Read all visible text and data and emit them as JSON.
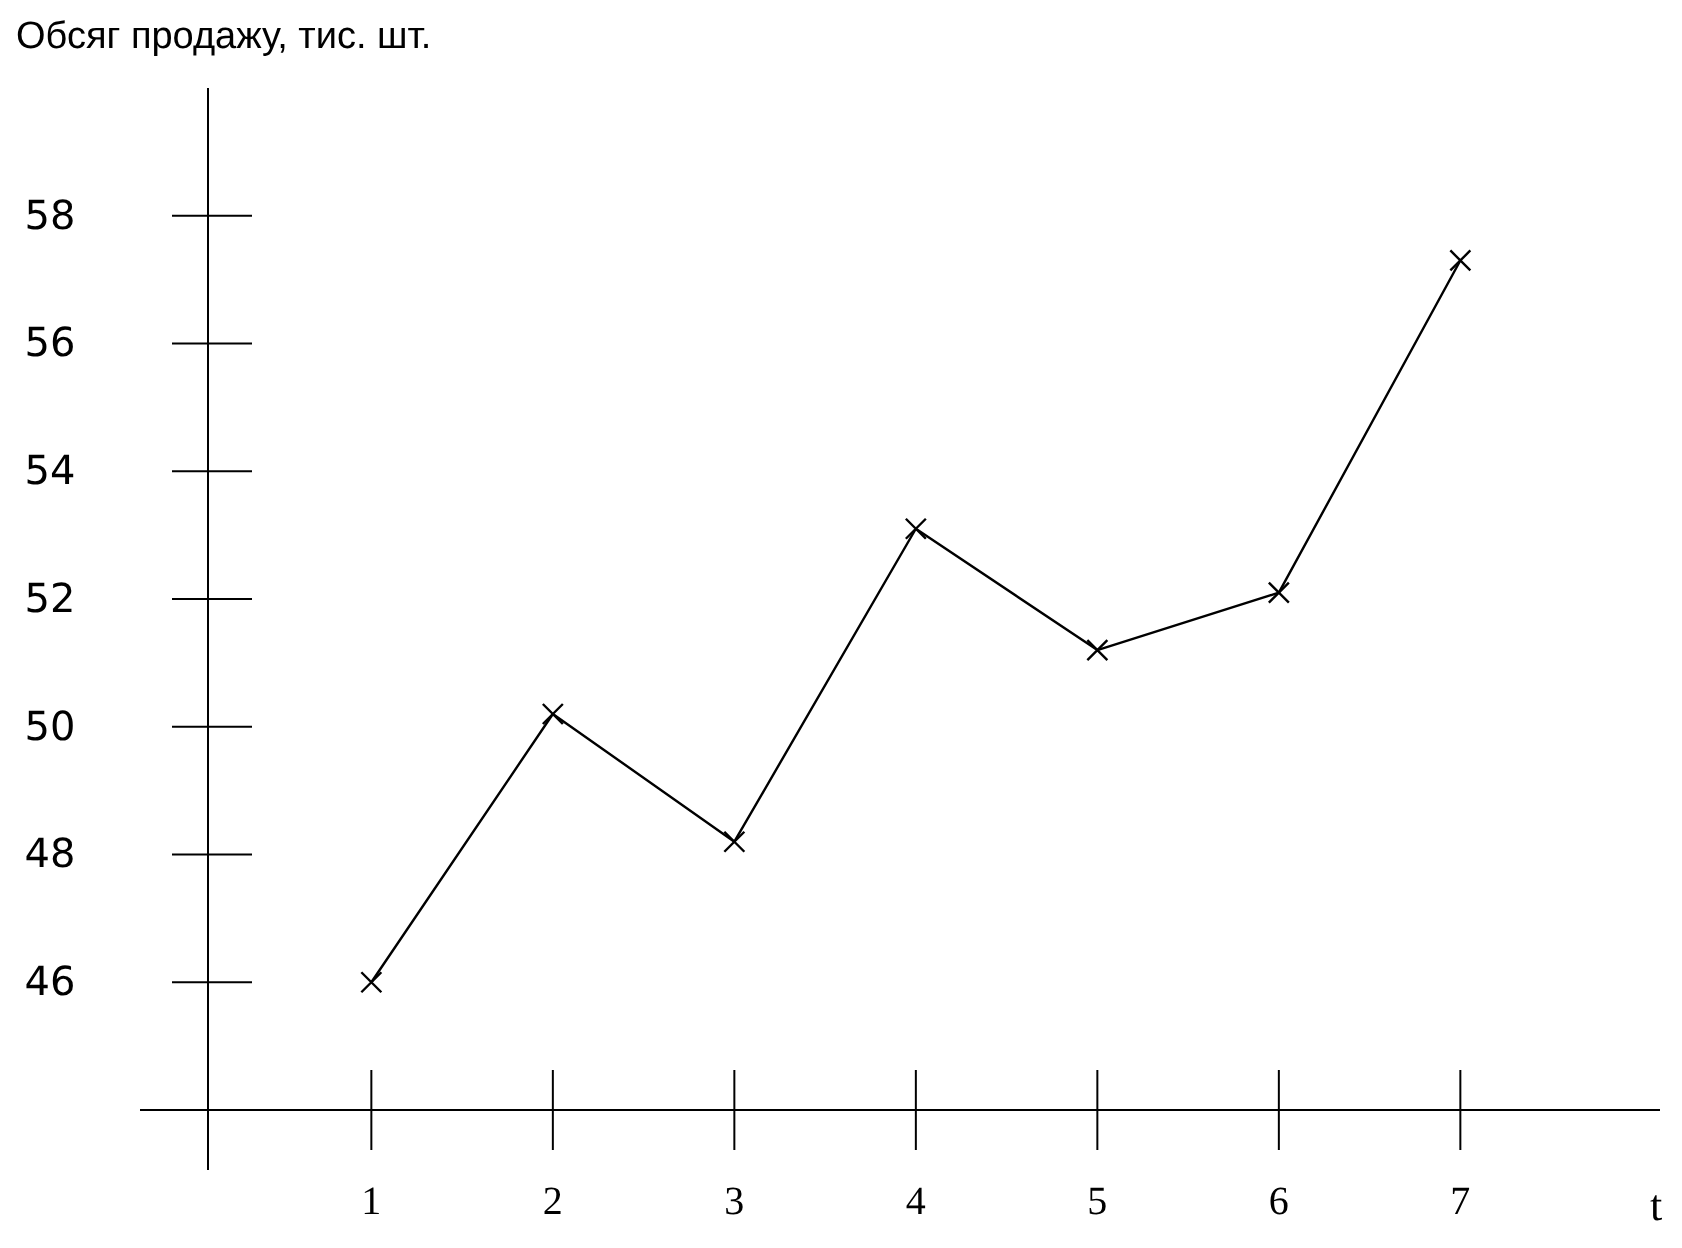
{
  "chart_data": {
    "type": "line",
    "ylabel": "Обсяг продажу, тис. шт.",
    "xlabel": "t",
    "x": [
      1,
      2,
      3,
      4,
      5,
      6,
      7
    ],
    "series": [
      {
        "color": "#000000",
        "values": [
          46,
          50.2,
          48.2,
          53.1,
          51.2,
          52.1,
          57.3
        ]
      }
    ],
    "xlim": [
      0.1,
      8.1
    ],
    "ylim": [
      44,
      60
    ],
    "xticks": [
      1,
      2,
      3,
      4,
      5,
      6,
      7
    ],
    "yticks": [
      46,
      48,
      50,
      52,
      54,
      56,
      58
    ],
    "marker": "cross",
    "line_style": "solid",
    "grid": false
  }
}
